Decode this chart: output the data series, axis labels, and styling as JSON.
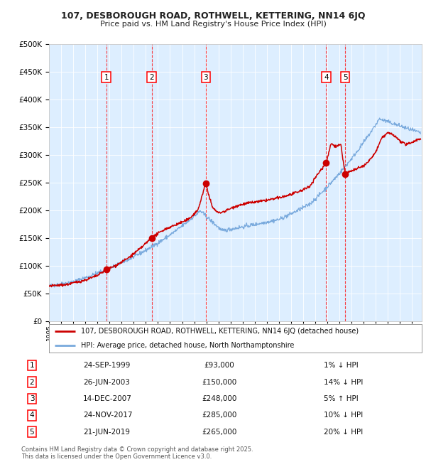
{
  "title1": "107, DESBOROUGH ROAD, ROTHWELL, KETTERING, NN14 6JQ",
  "title2": "Price paid vs. HM Land Registry's House Price Index (HPI)",
  "plot_bg_color": "#ddeeff",
  "red_line_color": "#cc0000",
  "blue_line_color": "#7aaadd",
  "transaction_dates": [
    1999.73,
    2003.48,
    2007.95,
    2017.9,
    2019.47
  ],
  "transaction_prices": [
    93000,
    150000,
    248000,
    285000,
    265000
  ],
  "transaction_labels": [
    "1",
    "2",
    "3",
    "4",
    "5"
  ],
  "table_data": [
    [
      "1",
      "24-SEP-1999",
      "£93,000",
      "1% ↓ HPI"
    ],
    [
      "2",
      "26-JUN-2003",
      "£150,000",
      "14% ↓ HPI"
    ],
    [
      "3",
      "14-DEC-2007",
      "£248,000",
      "5% ↑ HPI"
    ],
    [
      "4",
      "24-NOV-2017",
      "£285,000",
      "10% ↓ HPI"
    ],
    [
      "5",
      "21-JUN-2019",
      "£265,000",
      "20% ↓ HPI"
    ]
  ],
  "legend_line1": "107, DESBOROUGH ROAD, ROTHWELL, KETTERING, NN14 6JQ (detached house)",
  "legend_line2": "HPI: Average price, detached house, North Northamptonshire",
  "footnote": "Contains HM Land Registry data © Crown copyright and database right 2025.\nThis data is licensed under the Open Government Licence v3.0.",
  "ylim": [
    0,
    500000
  ],
  "yticks": [
    0,
    50000,
    100000,
    150000,
    200000,
    250000,
    300000,
    350000,
    400000,
    450000,
    500000
  ],
  "xmin": 1995.0,
  "xmax": 2025.8
}
